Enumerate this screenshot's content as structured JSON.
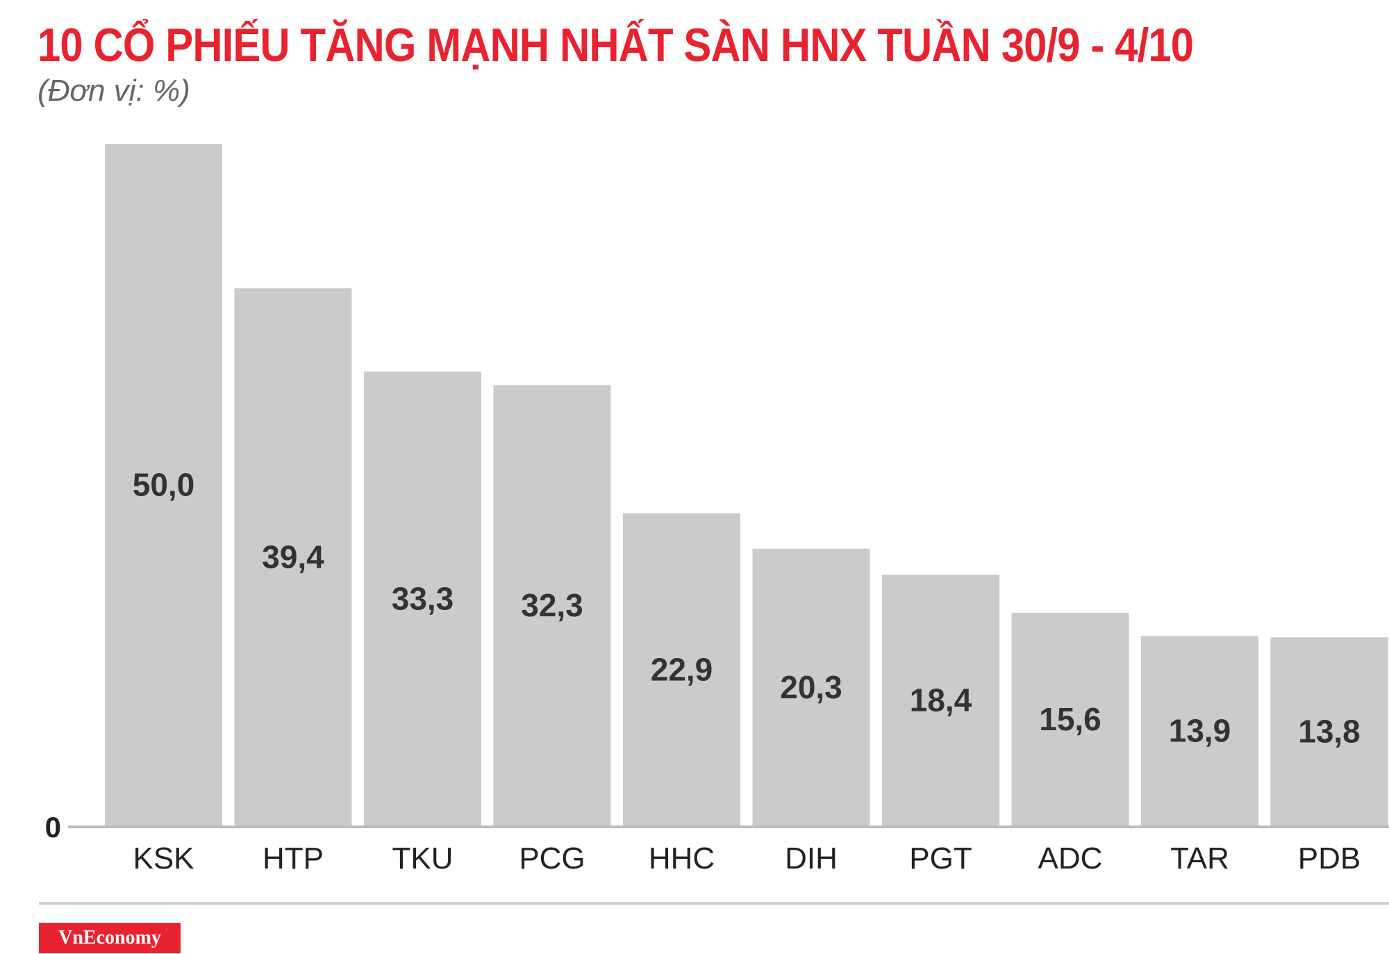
{
  "title": "10 CỔ PHIẾU TĂNG MẠNH NHẤT SÀN HNX TUẦN 30/9 - 4/10",
  "brand": "VnEconomy",
  "colors": {
    "title": "#e8232f",
    "bar": "#cccbcc",
    "axis": "#bdbdbd",
    "brand_bg": "#e8232f"
  },
  "chart_data": {
    "type": "bar",
    "title": "10 CỔ PHIẾU TĂNG MẠNH NHẤT SÀN HNX TUẦN 30/9 - 4/10",
    "subtitle": "(Đơn vị: %)",
    "categories": [
      "KSK",
      "HTP",
      "TKU",
      "PCG",
      "HHC",
      "DIH",
      "PGT",
      "ADC",
      "TAR",
      "PDB"
    ],
    "values": [
      50.0,
      39.4,
      33.3,
      32.3,
      22.9,
      20.3,
      18.4,
      15.6,
      13.9,
      13.8
    ],
    "value_labels": [
      "50,0",
      "39,4",
      "33,3",
      "32,3",
      "22,9",
      "20,3",
      "18,4",
      "15,6",
      "13,9",
      "13,8"
    ],
    "y_tick_labels": [
      "0"
    ],
    "ylim": [
      0,
      50
    ],
    "grid": false,
    "legend": "none"
  }
}
